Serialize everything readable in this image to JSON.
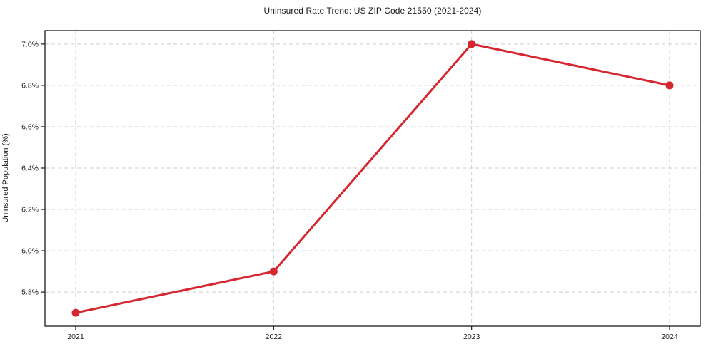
{
  "chart_data": {
    "type": "line",
    "title": "Uninsured Rate Trend: US ZIP Code 21550 (2021-2024)",
    "xlabel": "",
    "ylabel": "Uninsured Population (%)",
    "categories": [
      "2021",
      "2022",
      "2023",
      "2024"
    ],
    "x": [
      2021,
      2022,
      2023,
      2024
    ],
    "values": [
      5.7,
      5.9,
      7.0,
      6.8
    ],
    "yticks": [
      5.8,
      6.0,
      6.2,
      6.4,
      6.6,
      6.8,
      7.0
    ],
    "ytick_labels": [
      "5.8%",
      "6.0%",
      "6.2%",
      "6.4%",
      "6.6%",
      "6.8%",
      "7.0%"
    ],
    "xlim": [
      2020.845,
      2024.155
    ],
    "ylim": [
      5.635,
      7.065
    ],
    "grid": true,
    "grid_style": "dashed",
    "legend": false,
    "colors": {
      "line": "#d62730",
      "marker": "#d62730",
      "grid": "#cdcdcd",
      "spine": "#1a1a1a",
      "tick": "#1a1a1a",
      "background": "#ffffff"
    },
    "marker": "circle"
  }
}
